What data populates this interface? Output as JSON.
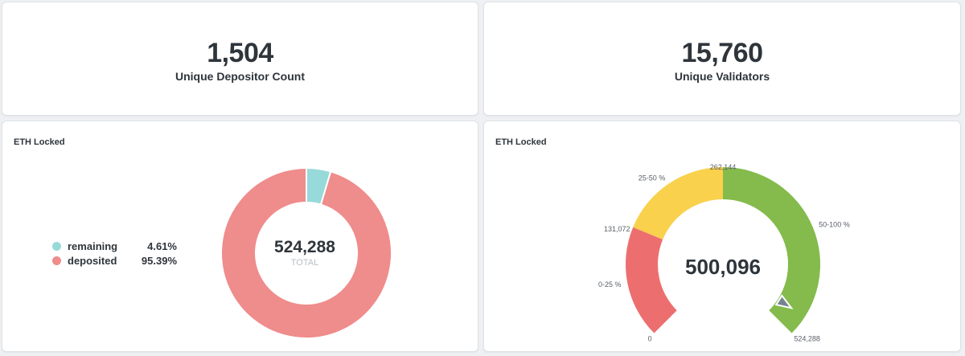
{
  "scalars": {
    "depositors": {
      "value": "1,504",
      "label": "Unique Depositor Count"
    },
    "validators": {
      "value": "15,760",
      "label": "Unique Validators"
    }
  },
  "colors": {
    "remaining": "#98d9d9",
    "deposited": "#ef8c8c",
    "gauge_red": "#ed6e6e",
    "gauge_yellow": "#f9d14c",
    "gauge_green": "#84bb4c",
    "needle": "#74838f"
  },
  "chart_data": [
    {
      "type": "pie",
      "title": "ETH Locked",
      "donut": true,
      "total_value": "524,288",
      "total_label": "TOTAL",
      "legend_position": "left",
      "slices": [
        {
          "name": "remaining",
          "value": 4.61,
          "label": "4.61%"
        },
        {
          "name": "deposited",
          "value": 95.39,
          "label": "95.39%"
        }
      ]
    },
    {
      "type": "gauge",
      "title": "ETH Locked",
      "value": 500096,
      "value_label": "500,096",
      "min": 0,
      "max": 524288,
      "ranges": [
        {
          "name": "0-25 %",
          "from": 0,
          "to": 131072,
          "color_key": "gauge_red"
        },
        {
          "name": "25-50 %",
          "from": 131072,
          "to": 262144,
          "color_key": "gauge_yellow"
        },
        {
          "name": "50-100 %",
          "from": 262144,
          "to": 524288,
          "color_key": "gauge_green"
        }
      ],
      "tick_labels": [
        "0",
        "131,072",
        "262,144",
        "524,288"
      ]
    }
  ]
}
